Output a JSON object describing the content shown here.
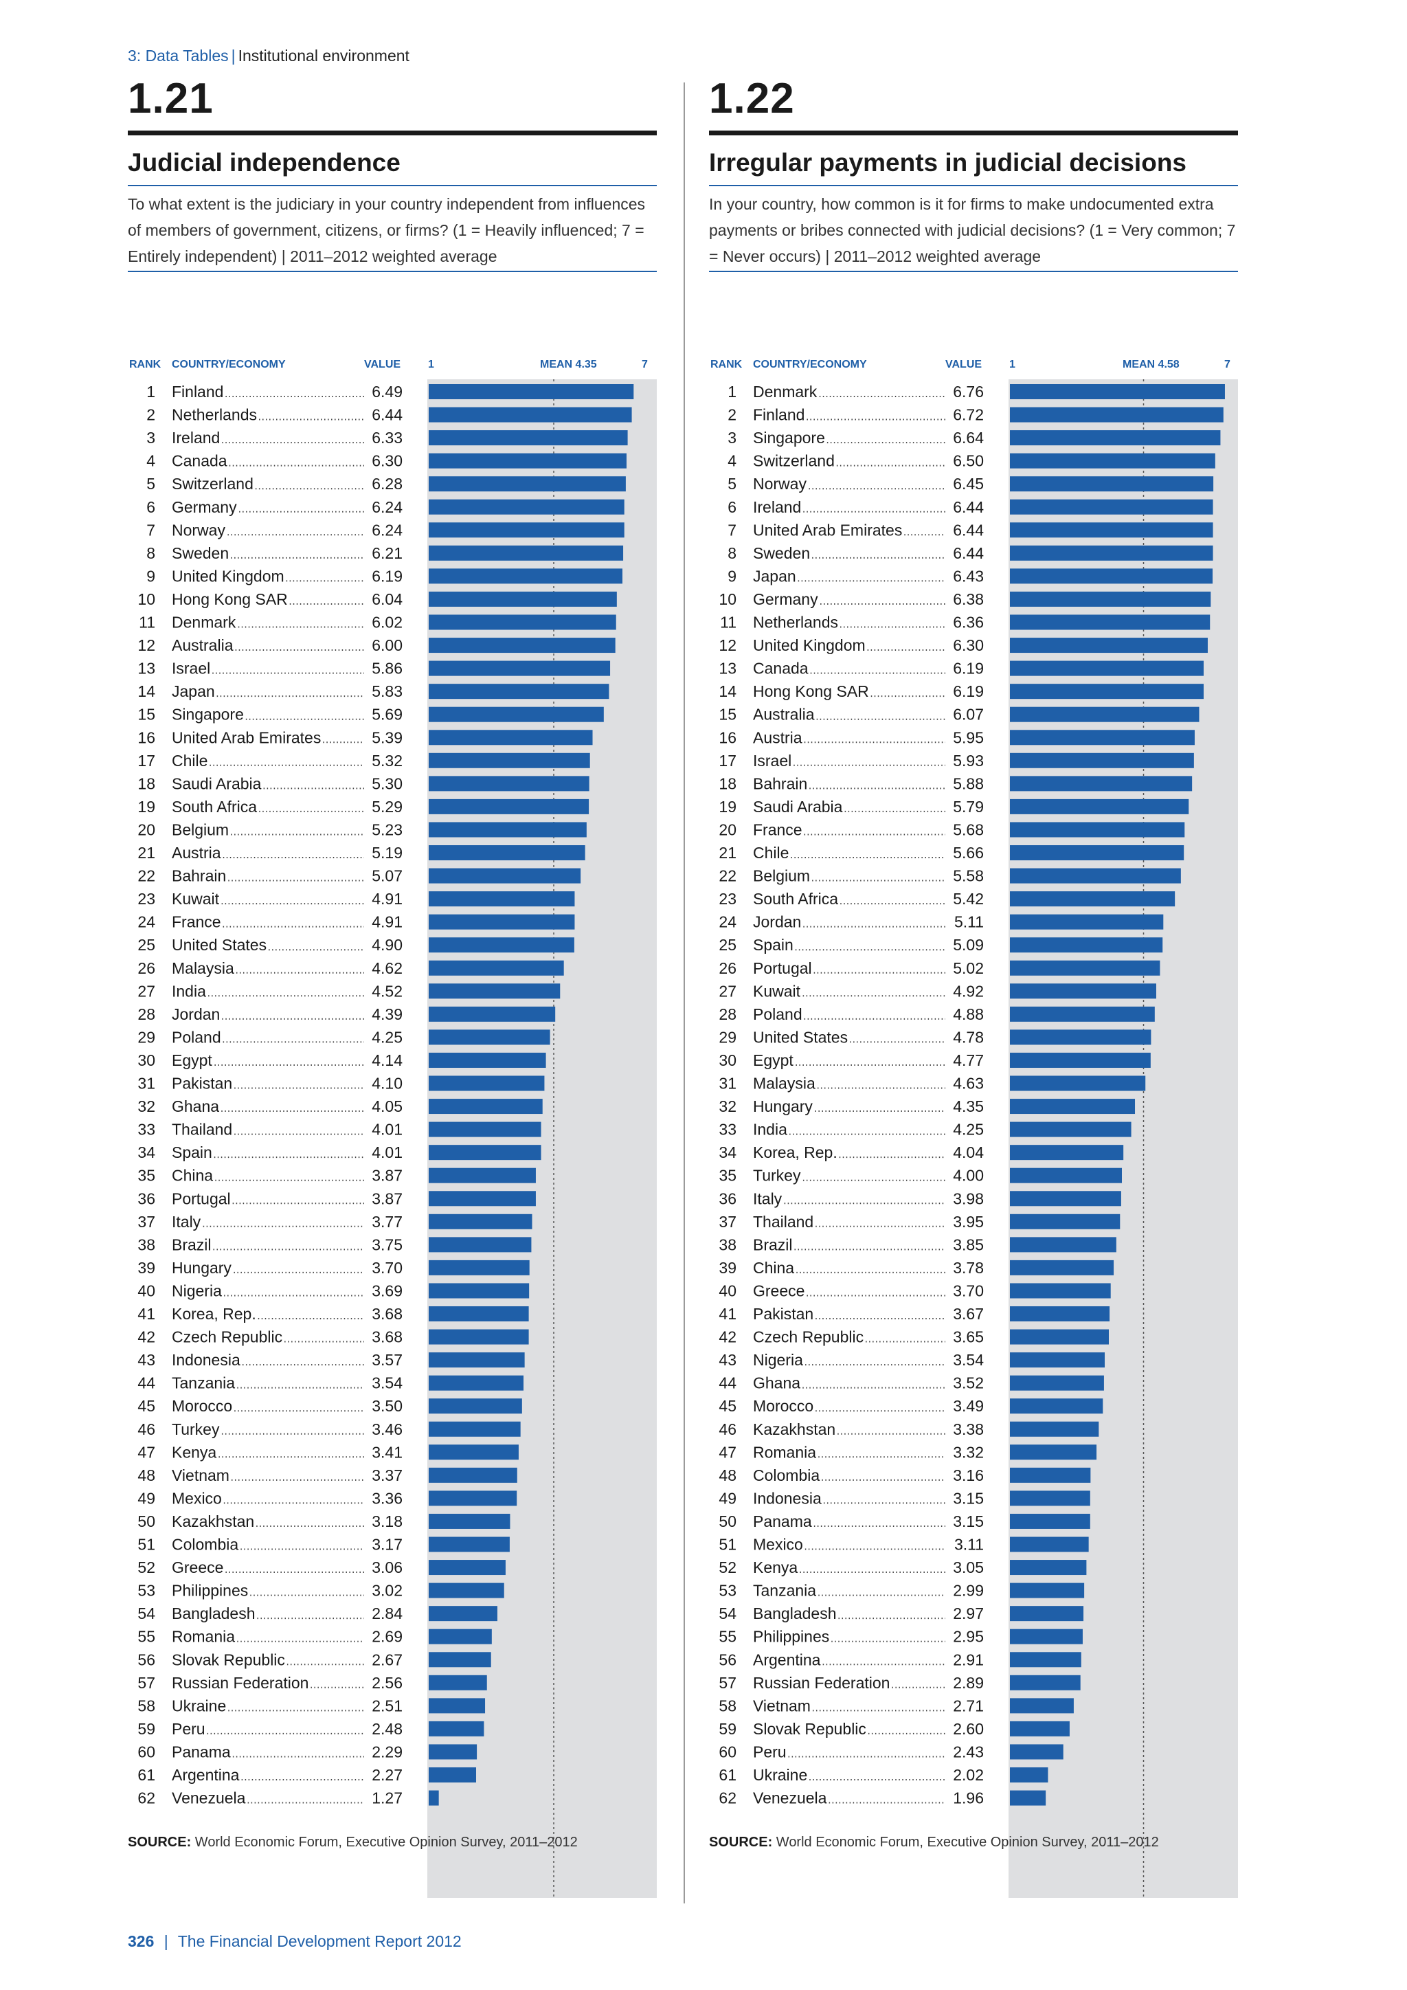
{
  "breadcrumb": {
    "section": "3: Data Tables",
    "separator": "|",
    "subsection": "Institutional environment"
  },
  "footer": {
    "page": "326",
    "separator": "|",
    "report": "The Financial Development Report 2012"
  },
  "colors": {
    "accent": "#1f5fa8",
    "bar": "#1f5fa8",
    "plot_bg": "#dedfe1"
  },
  "panels": [
    {
      "number": "1.21",
      "title": "Judicial independence",
      "description": "To what extent is the judiciary in your country independent from influences of members of government, citizens, or firms? (1 = Heavily influenced; 7 = Entirely independent) | 2011–2012 weighted average",
      "header": {
        "rank": "RANK",
        "country": "COUNTRY/ECONOMY",
        "value": "VALUE",
        "min": "1",
        "mean": "MEAN 4.35",
        "max": "7"
      },
      "source_label": "SOURCE:",
      "source_text": "World Economic Forum, Executive Opinion Survey, 2011–2012"
    },
    {
      "number": "1.22",
      "title": "Irregular payments in judicial decisions",
      "description": "In your country, how common is it for firms to make undocumented extra payments or bribes connected with judicial decisions? (1 = Very common; 7 = Never occurs) | 2011–2012 weighted average",
      "header": {
        "rank": "RANK",
        "country": "COUNTRY/ECONOMY",
        "value": "VALUE",
        "min": "1",
        "mean": "MEAN 4.58",
        "max": "7"
      },
      "source_label": "SOURCE:",
      "source_text": "World Economic Forum, Executive Opinion Survey, 2011–2012"
    }
  ],
  "chart_data": [
    {
      "type": "bar",
      "orientation": "horizontal",
      "xlim": [
        1,
        7
      ],
      "mean": 4.35,
      "categories": [
        "Finland",
        "Netherlands",
        "Ireland",
        "Canada",
        "Switzerland",
        "Germany",
        "Norway",
        "Sweden",
        "United Kingdom",
        "Hong Kong SAR",
        "Denmark",
        "Australia",
        "Israel",
        "Japan",
        "Singapore",
        "United Arab Emirates",
        "Chile",
        "Saudi Arabia",
        "South Africa",
        "Belgium",
        "Austria",
        "Bahrain",
        "Kuwait",
        "France",
        "United States",
        "Malaysia",
        "India",
        "Jordan",
        "Poland",
        "Egypt",
        "Pakistan",
        "Ghana",
        "Thailand",
        "Spain",
        "China",
        "Portugal",
        "Italy",
        "Brazil",
        "Hungary",
        "Nigeria",
        "Korea, Rep.",
        "Czech Republic",
        "Indonesia",
        "Tanzania",
        "Morocco",
        "Turkey",
        "Kenya",
        "Vietnam",
        "Mexico",
        "Kazakhstan",
        "Colombia",
        "Greece",
        "Philippines",
        "Bangladesh",
        "Romania",
        "Slovak Republic",
        "Russian Federation",
        "Ukraine",
        "Peru",
        "Panama",
        "Argentina",
        "Venezuela"
      ],
      "values": [
        6.49,
        6.44,
        6.33,
        6.3,
        6.28,
        6.24,
        6.24,
        6.21,
        6.19,
        6.04,
        6.02,
        6.0,
        5.86,
        5.83,
        5.69,
        5.39,
        5.32,
        5.3,
        5.29,
        5.23,
        5.19,
        5.07,
        4.91,
        4.91,
        4.9,
        4.62,
        4.52,
        4.39,
        4.25,
        4.14,
        4.1,
        4.05,
        4.01,
        4.01,
        3.87,
        3.87,
        3.77,
        3.75,
        3.7,
        3.69,
        3.68,
        3.68,
        3.57,
        3.54,
        3.5,
        3.46,
        3.41,
        3.37,
        3.36,
        3.18,
        3.17,
        3.06,
        3.02,
        2.84,
        2.69,
        2.67,
        2.56,
        2.51,
        2.48,
        2.29,
        2.27,
        1.27
      ]
    },
    {
      "type": "bar",
      "orientation": "horizontal",
      "xlim": [
        1,
        7
      ],
      "mean": 4.58,
      "categories": [
        "Denmark",
        "Finland",
        "Singapore",
        "Switzerland",
        "Norway",
        "Ireland",
        "United Arab Emirates",
        "Sweden",
        "Japan",
        "Germany",
        "Netherlands",
        "United Kingdom",
        "Canada",
        "Hong Kong SAR",
        "Australia",
        "Austria",
        "Israel",
        "Bahrain",
        "Saudi Arabia",
        "France",
        "Chile",
        "Belgium",
        "South Africa",
        "Jordan",
        "Spain",
        "Portugal",
        "Kuwait",
        "Poland",
        "United States",
        "Egypt",
        "Malaysia",
        "Hungary",
        "India",
        "Korea, Rep.",
        "Turkey",
        "Italy",
        "Thailand",
        "Brazil",
        "China",
        "Greece",
        "Pakistan",
        "Czech Republic",
        "Nigeria",
        "Ghana",
        "Morocco",
        "Kazakhstan",
        "Romania",
        "Colombia",
        "Indonesia",
        "Panama",
        "Mexico",
        "Kenya",
        "Tanzania",
        "Bangladesh",
        "Philippines",
        "Argentina",
        "Russian Federation",
        "Vietnam",
        "Slovak Republic",
        "Peru",
        "Ukraine",
        "Venezuela"
      ],
      "values": [
        6.76,
        6.72,
        6.64,
        6.5,
        6.45,
        6.44,
        6.44,
        6.44,
        6.43,
        6.38,
        6.36,
        6.3,
        6.19,
        6.19,
        6.07,
        5.95,
        5.93,
        5.88,
        5.79,
        5.68,
        5.66,
        5.58,
        5.42,
        5.11,
        5.09,
        5.02,
        4.92,
        4.88,
        4.78,
        4.77,
        4.63,
        4.35,
        4.25,
        4.04,
        4.0,
        3.98,
        3.95,
        3.85,
        3.78,
        3.7,
        3.67,
        3.65,
        3.54,
        3.52,
        3.49,
        3.38,
        3.32,
        3.16,
        3.15,
        3.15,
        3.11,
        3.05,
        2.99,
        2.97,
        2.95,
        2.91,
        2.89,
        2.71,
        2.6,
        2.43,
        2.02,
        1.96
      ]
    }
  ]
}
